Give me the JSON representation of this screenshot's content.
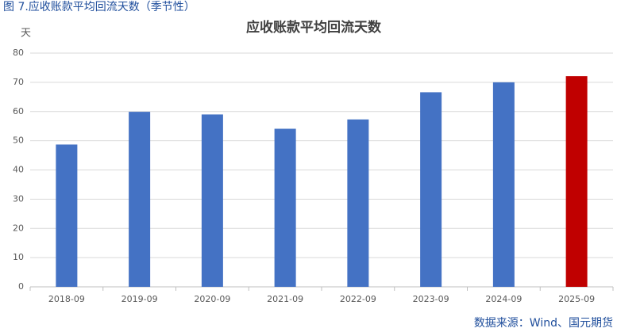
{
  "caption": "图 7.应收账款平均回流天数（季节性）",
  "source": "数据来源：Wind、国元期货",
  "chart_data": {
    "type": "bar",
    "title": "应收账款平均回流天数",
    "y_label": "天",
    "categories": [
      "2018-09",
      "2019-09",
      "2020-09",
      "2021-09",
      "2022-09",
      "2023-09",
      "2024-09",
      "2025-09"
    ],
    "values": [
      48.7,
      59.9,
      59.0,
      54.1,
      57.3,
      66.6,
      70.0,
      72.1
    ],
    "colors": [
      "#4472c4",
      "#4472c4",
      "#4472c4",
      "#4472c4",
      "#4472c4",
      "#4472c4",
      "#4472c4",
      "#c00000"
    ],
    "ylim": [
      0,
      80
    ],
    "yticks": [
      0,
      10,
      20,
      30,
      40,
      50,
      60,
      70,
      80
    ],
    "grid": true
  }
}
